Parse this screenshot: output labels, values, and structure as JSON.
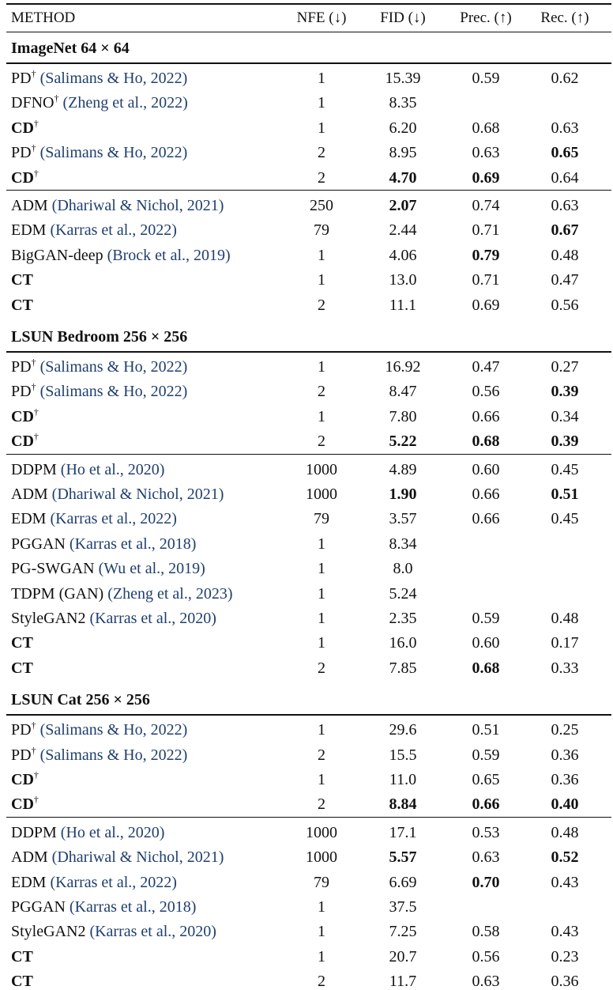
{
  "header": {
    "method": "METHOD",
    "nfe": "NFE (↓)",
    "fid": "FID (↓)",
    "prec": "Prec. (↑)",
    "rec": "Rec. (↑)"
  },
  "sections": [
    {
      "title": "ImageNet 64 × 64",
      "groups": [
        [
          {
            "name": "PD",
            "dagger": "†",
            "cite": "(Salimans & Ho, 2022)",
            "nfe": "1",
            "fid": "15.39",
            "prec": "0.59",
            "rec": "0.62"
          },
          {
            "name": "DFNO",
            "dagger": "†",
            "cite": "(Zheng et al., 2022)",
            "nfe": "1",
            "fid": "8.35",
            "prec": "",
            "rec": ""
          },
          {
            "name": "CD",
            "dagger": "†",
            "cite": "",
            "nfe": "1",
            "fid": "6.20",
            "prec": "0.68",
            "rec": "0.63",
            "bold_name": true
          },
          {
            "name": "PD",
            "dagger": "†",
            "cite": "(Salimans & Ho, 2022)",
            "nfe": "2",
            "fid": "8.95",
            "prec": "0.63",
            "rec": "0.65",
            "bold_rec": true
          },
          {
            "name": "CD",
            "dagger": "†",
            "cite": "",
            "nfe": "2",
            "fid": "4.70",
            "prec": "0.69",
            "rec": "0.64",
            "bold_name": true,
            "bold_fid": true,
            "bold_prec": true
          }
        ],
        [
          {
            "name": "ADM",
            "dagger": "",
            "cite": "(Dhariwal & Nichol, 2021)",
            "nfe": "250",
            "fid": "2.07",
            "prec": "0.74",
            "rec": "0.63",
            "bold_fid": true
          },
          {
            "name": "EDM",
            "dagger": "",
            "cite": "(Karras et al., 2022)",
            "nfe": "79",
            "fid": "2.44",
            "prec": "0.71",
            "rec": "0.67",
            "bold_rec": true
          },
          {
            "name": "BigGAN-deep",
            "dagger": "",
            "cite": "(Brock et al., 2019)",
            "nfe": "1",
            "fid": "4.06",
            "prec": "0.79",
            "rec": "0.48",
            "bold_prec": true
          },
          {
            "name": "CT",
            "dagger": "",
            "cite": "",
            "nfe": "1",
            "fid": "13.0",
            "prec": "0.71",
            "rec": "0.47",
            "bold_name": true
          },
          {
            "name": "CT",
            "dagger": "",
            "cite": "",
            "nfe": "2",
            "fid": "11.1",
            "prec": "0.69",
            "rec": "0.56",
            "bold_name": true
          }
        ]
      ]
    },
    {
      "title": "LSUN Bedroom 256 × 256",
      "groups": [
        [
          {
            "name": "PD",
            "dagger": "†",
            "cite": "(Salimans & Ho, 2022)",
            "nfe": "1",
            "fid": "16.92",
            "prec": "0.47",
            "rec": "0.27"
          },
          {
            "name": "PD",
            "dagger": "†",
            "cite": "(Salimans & Ho, 2022)",
            "nfe": "2",
            "fid": "8.47",
            "prec": "0.56",
            "rec": "0.39",
            "bold_rec": true
          },
          {
            "name": "CD",
            "dagger": "†",
            "cite": "",
            "nfe": "1",
            "fid": "7.80",
            "prec": "0.66",
            "rec": "0.34",
            "bold_name": true
          },
          {
            "name": "CD",
            "dagger": "†",
            "cite": "",
            "nfe": "2",
            "fid": "5.22",
            "prec": "0.68",
            "rec": "0.39",
            "bold_name": true,
            "bold_fid": true,
            "bold_prec": true,
            "bold_rec": true
          }
        ],
        [
          {
            "name": "DDPM",
            "dagger": "",
            "cite": "(Ho et al., 2020)",
            "nfe": "1000",
            "fid": "4.89",
            "prec": "0.60",
            "rec": "0.45"
          },
          {
            "name": "ADM",
            "dagger": "",
            "cite": "(Dhariwal & Nichol, 2021)",
            "nfe": "1000",
            "fid": "1.90",
            "prec": "0.66",
            "rec": "0.51",
            "bold_fid": true,
            "bold_rec": true
          },
          {
            "name": "EDM",
            "dagger": "",
            "cite": "(Karras et al., 2022)",
            "nfe": "79",
            "fid": "3.57",
            "prec": "0.66",
            "rec": "0.45"
          },
          {
            "name": "PGGAN",
            "dagger": "",
            "cite": "(Karras et al., 2018)",
            "nfe": "1",
            "fid": "8.34",
            "prec": "",
            "rec": ""
          },
          {
            "name": "PG-SWGAN",
            "dagger": "",
            "cite": "(Wu et al., 2019)",
            "nfe": "1",
            "fid": "8.0",
            "prec": "",
            "rec": ""
          },
          {
            "name": "TDPM (GAN)",
            "dagger": "",
            "cite": "(Zheng et al., 2023)",
            "nfe": "1",
            "fid": "5.24",
            "prec": "",
            "rec": ""
          },
          {
            "name": "StyleGAN2",
            "dagger": "",
            "cite": "(Karras et al., 2020)",
            "nfe": "1",
            "fid": "2.35",
            "prec": "0.59",
            "rec": "0.48"
          },
          {
            "name": "CT",
            "dagger": "",
            "cite": "",
            "nfe": "1",
            "fid": "16.0",
            "prec": "0.60",
            "rec": "0.17",
            "bold_name": true
          },
          {
            "name": "CT",
            "dagger": "",
            "cite": "",
            "nfe": "2",
            "fid": "7.85",
            "prec": "0.68",
            "rec": "0.33",
            "bold_name": true,
            "bold_prec": true
          }
        ]
      ]
    },
    {
      "title": "LSUN Cat 256 × 256",
      "groups": [
        [
          {
            "name": "PD",
            "dagger": "†",
            "cite": "(Salimans & Ho, 2022)",
            "nfe": "1",
            "fid": "29.6",
            "prec": "0.51",
            "rec": "0.25"
          },
          {
            "name": "PD",
            "dagger": "†",
            "cite": "(Salimans & Ho, 2022)",
            "nfe": "2",
            "fid": "15.5",
            "prec": "0.59",
            "rec": "0.36"
          },
          {
            "name": "CD",
            "dagger": "†",
            "cite": "",
            "nfe": "1",
            "fid": "11.0",
            "prec": "0.65",
            "rec": "0.36",
            "bold_name": true
          },
          {
            "name": "CD",
            "dagger": "†",
            "cite": "",
            "nfe": "2",
            "fid": "8.84",
            "prec": "0.66",
            "rec": "0.40",
            "bold_name": true,
            "bold_fid": true,
            "bold_prec": true,
            "bold_rec": true
          }
        ],
        [
          {
            "name": "DDPM",
            "dagger": "",
            "cite": "(Ho et al., 2020)",
            "nfe": "1000",
            "fid": "17.1",
            "prec": "0.53",
            "rec": "0.48"
          },
          {
            "name": "ADM",
            "dagger": "",
            "cite": "(Dhariwal & Nichol, 2021)",
            "nfe": "1000",
            "fid": "5.57",
            "prec": "0.63",
            "rec": "0.52",
            "bold_fid": true,
            "bold_rec": true
          },
          {
            "name": "EDM",
            "dagger": "",
            "cite": "(Karras et al., 2022)",
            "nfe": "79",
            "fid": "6.69",
            "prec": "0.70",
            "rec": "0.43",
            "bold_prec": true
          },
          {
            "name": "PGGAN",
            "dagger": "",
            "cite": "(Karras et al., 2018)",
            "nfe": "1",
            "fid": "37.5",
            "prec": "",
            "rec": ""
          },
          {
            "name": "StyleGAN2",
            "dagger": "",
            "cite": "(Karras et al., 2020)",
            "nfe": "1",
            "fid": "7.25",
            "prec": "0.58",
            "rec": "0.43"
          },
          {
            "name": "CT",
            "dagger": "",
            "cite": "",
            "nfe": "1",
            "fid": "20.7",
            "prec": "0.56",
            "rec": "0.23",
            "bold_name": true
          },
          {
            "name": "CT",
            "dagger": "",
            "cite": "",
            "nfe": "2",
            "fid": "11.7",
            "prec": "0.63",
            "rec": "0.36",
            "bold_name": true
          }
        ]
      ]
    }
  ]
}
